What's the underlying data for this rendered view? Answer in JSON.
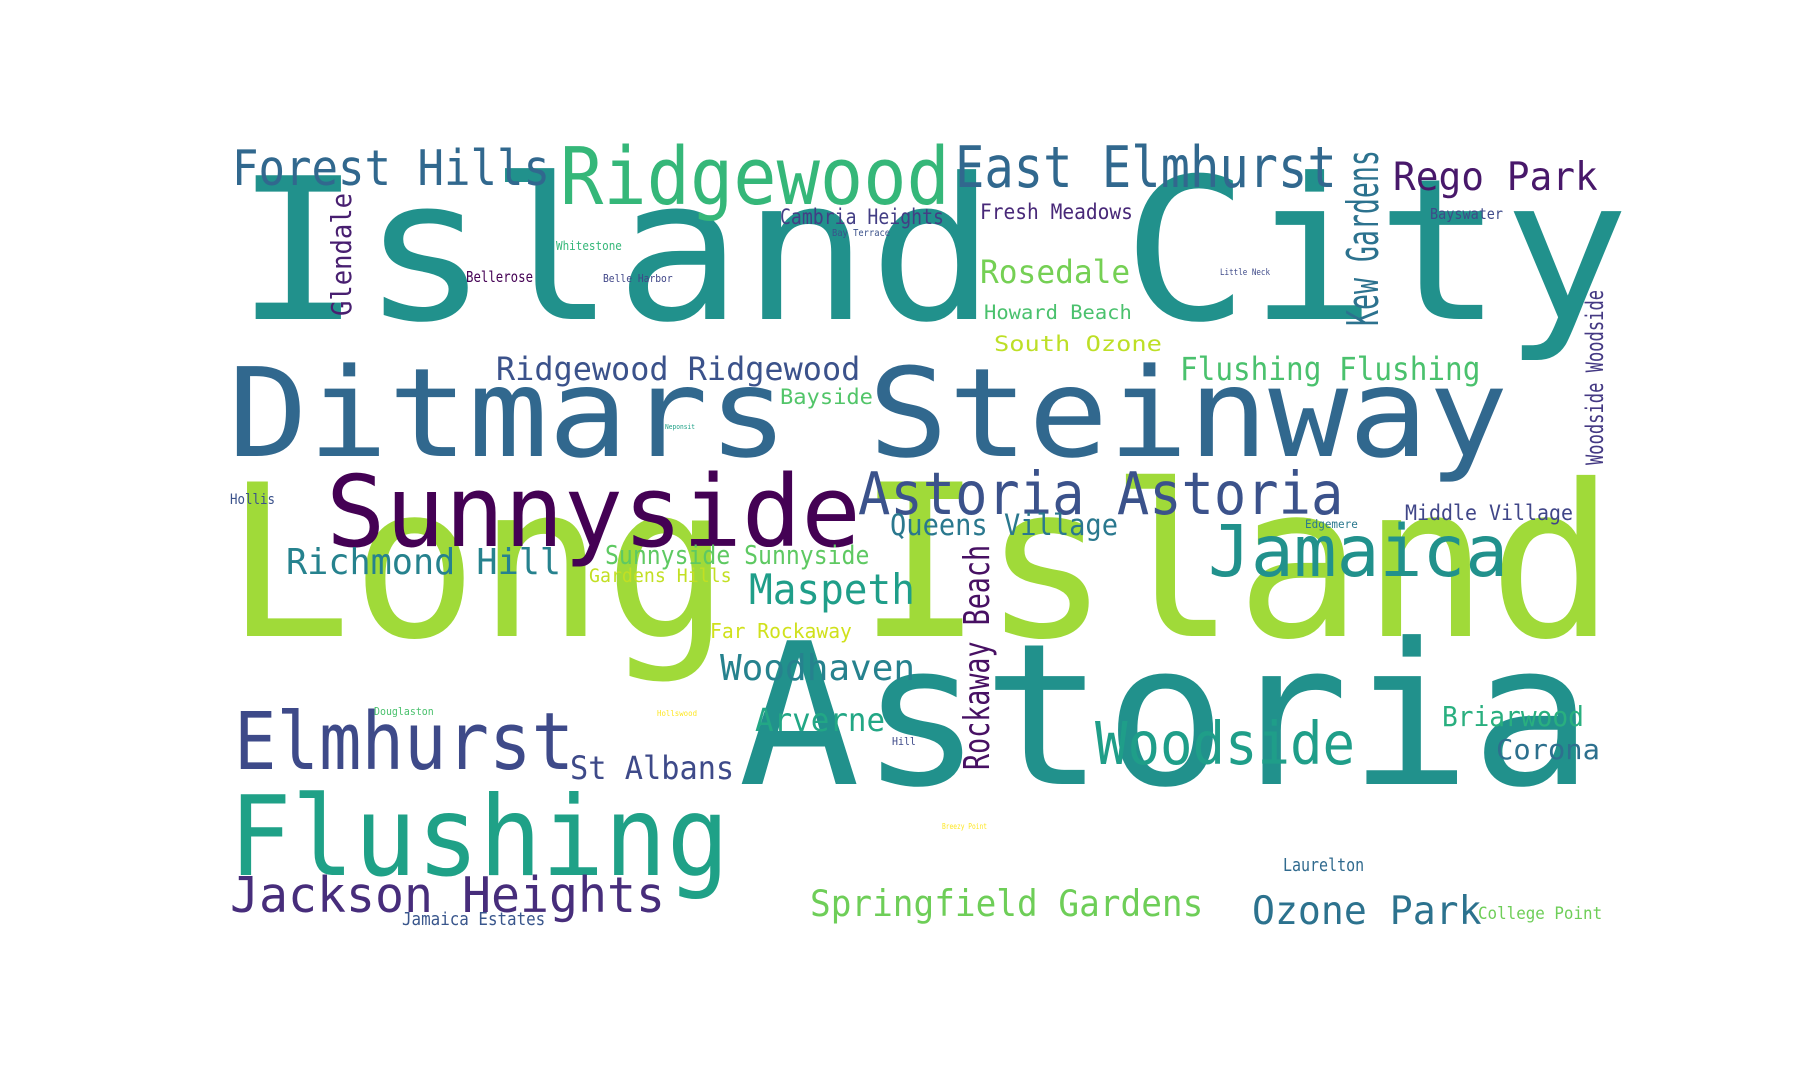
{
  "words": [
    {
      "text": "Island City",
      "color": "#21918c"
    },
    {
      "text": "Long Island",
      "color": "#a0da39"
    },
    {
      "text": "Astoria",
      "color": "#21918c"
    },
    {
      "text": "Ditmars Steinway",
      "color": "#31688e"
    },
    {
      "text": "Sunnyside",
      "color": "#440154"
    },
    {
      "text": "Ridgewood",
      "color": "#35b779"
    },
    {
      "text": "Flushing",
      "color": "#1fa187"
    },
    {
      "text": "Elmhurst",
      "color": "#3e4a89"
    },
    {
      "text": "Forest Hills",
      "color": "#31688e"
    },
    {
      "text": "East Elmhurst",
      "color": "#31688e"
    },
    {
      "text": "Jamaica",
      "color": "#21918c"
    },
    {
      "text": "Astoria Astoria",
      "color": "#3b528b"
    },
    {
      "text": "Woodside",
      "color": "#1f9e89"
    },
    {
      "text": "Jackson Heights",
      "color": "#472d7b"
    },
    {
      "text": "Rego Park",
      "color": "#48186a"
    },
    {
      "text": "Ridgewood Ridgewood",
      "color": "#3b528b"
    },
    {
      "text": "Richmond Hill",
      "color": "#26828e"
    },
    {
      "text": "Maspeth",
      "color": "#1f9e89"
    },
    {
      "text": "Woodhaven",
      "color": "#26828e"
    },
    {
      "text": "Ozone Park",
      "color": "#2c728e"
    },
    {
      "text": "Springfield Gardens",
      "color": "#6ece58"
    },
    {
      "text": "Kew Gardens",
      "color": "#2c728e"
    },
    {
      "text": "Rockaway Beach",
      "color": "#471063"
    },
    {
      "text": "Flushing Flushing",
      "color": "#4ac16d"
    },
    {
      "text": "Queens Village",
      "color": "#2a788e"
    },
    {
      "text": "Arverne",
      "color": "#22a785"
    },
    {
      "text": "St Albans",
      "color": "#3e4a89"
    },
    {
      "text": "Rosedale",
      "color": "#75d054"
    },
    {
      "text": "Glendale",
      "color": "#481f70"
    },
    {
      "text": "Briarwood",
      "color": "#29af7f"
    },
    {
      "text": "Corona",
      "color": "#2d708e"
    },
    {
      "text": "Sunnyside Sunnyside",
      "color": "#5ec962"
    },
    {
      "text": "Middle Village",
      "color": "#404688"
    },
    {
      "text": "Cambria Heights",
      "color": "#433e85"
    },
    {
      "text": "Fresh Meadows",
      "color": "#482878"
    },
    {
      "text": "Woodside Woodside",
      "color": "#443983"
    },
    {
      "text": "South Ozone",
      "color": "#bddf26"
    },
    {
      "text": "Howard Beach",
      "color": "#4ac16d"
    },
    {
      "text": "Bayside",
      "color": "#52c569"
    },
    {
      "text": "Gardens Hills",
      "color": "#c2df23"
    },
    {
      "text": "Far Rockaway",
      "color": "#d0e11c"
    },
    {
      "text": "Jamaica Estates",
      "color": "#39568c"
    },
    {
      "text": "Laurelton",
      "color": "#306a8e"
    },
    {
      "text": "College Point",
      "color": "#6ece58"
    },
    {
      "text": "Bellerose",
      "color": "#440154"
    },
    {
      "text": "Hollis",
      "color": "#3b528b"
    },
    {
      "text": "Bayswater",
      "color": "#3e4a89"
    },
    {
      "text": "Whitestone",
      "color": "#35b779"
    },
    {
      "text": "Belle Harbor",
      "color": "#404688"
    },
    {
      "text": "Bay Terrace",
      "color": "#3b528b"
    },
    {
      "text": "Little Neck",
      "color": "#3e4a89"
    },
    {
      "text": "Edgemere",
      "color": "#2a788e"
    },
    {
      "text": "Douglaston",
      "color": "#4ac16d"
    },
    {
      "text": "Hill",
      "color": "#3e4a89"
    },
    {
      "text": "Hollswood",
      "color": "#fde725"
    },
    {
      "text": "Breezy Point",
      "color": "#fde725"
    },
    {
      "text": "Neponsit",
      "color": "#1fa187"
    }
  ]
}
